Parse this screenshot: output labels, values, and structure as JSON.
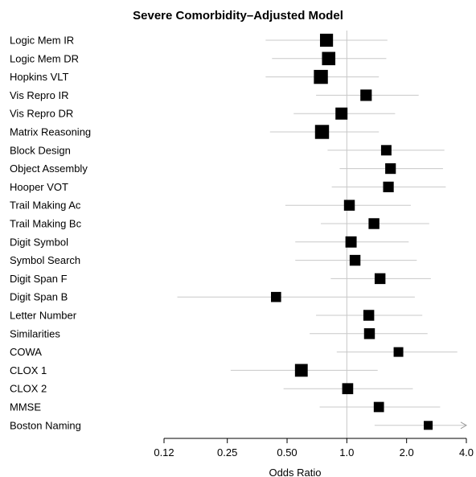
{
  "chart_data": {
    "type": "forest",
    "title": "Severe Comorbidity–Adjusted Model",
    "xlabel": "Odds Ratio",
    "xscale": "log",
    "xlim": [
      0.12,
      4.0
    ],
    "xticks": [
      0.12,
      0.25,
      0.5,
      1.0,
      2.0,
      4.0
    ],
    "xtick_labels": [
      "0.12",
      "0.25",
      "0.50",
      "1.0",
      "2.0",
      "4.0"
    ],
    "reference_line": 1.0,
    "colors": {
      "marker": "#000000",
      "ci_line": "#c8c8c8",
      "reference": "#c8c8c8",
      "axis": "#000000"
    },
    "rows": [
      {
        "label": "Logic Mem IR",
        "or": 0.79,
        "ci_low": 0.39,
        "ci_high": 1.6,
        "weight": 0.85
      },
      {
        "label": "Logic Mem DR",
        "or": 0.81,
        "ci_low": 0.42,
        "ci_high": 1.58,
        "weight": 0.88
      },
      {
        "label": "Hopkins VLT",
        "or": 0.74,
        "ci_low": 0.39,
        "ci_high": 1.45,
        "weight": 0.95
      },
      {
        "label": "Vis Repro IR",
        "or": 1.25,
        "ci_low": 0.7,
        "ci_high": 2.3,
        "weight": 0.68
      },
      {
        "label": "Vis Repro DR",
        "or": 0.94,
        "ci_low": 0.54,
        "ci_high": 1.75,
        "weight": 0.75
      },
      {
        "label": "Matrix Reasoning",
        "or": 0.75,
        "ci_low": 0.41,
        "ci_high": 1.45,
        "weight": 0.95
      },
      {
        "label": "Block Design",
        "or": 1.58,
        "ci_low": 0.8,
        "ci_high": 3.1,
        "weight": 0.58
      },
      {
        "label": "Object Assembly",
        "or": 1.66,
        "ci_low": 0.92,
        "ci_high": 3.05,
        "weight": 0.6
      },
      {
        "label": "Hooper VOT",
        "or": 1.62,
        "ci_low": 0.84,
        "ci_high": 3.15,
        "weight": 0.6
      },
      {
        "label": "Trail Making Ac",
        "or": 1.03,
        "ci_low": 0.49,
        "ci_high": 2.1,
        "weight": 0.62
      },
      {
        "label": "Trail Making Bc",
        "or": 1.37,
        "ci_low": 0.74,
        "ci_high": 2.6,
        "weight": 0.62
      },
      {
        "label": "Digit Symbol",
        "or": 1.05,
        "ci_low": 0.55,
        "ci_high": 2.05,
        "weight": 0.66
      },
      {
        "label": "Symbol Search",
        "or": 1.1,
        "ci_low": 0.55,
        "ci_high": 2.25,
        "weight": 0.62
      },
      {
        "label": "Digit Span F",
        "or": 1.47,
        "ci_low": 0.83,
        "ci_high": 2.65,
        "weight": 0.62
      },
      {
        "label": "Digit Span B",
        "or": 0.44,
        "ci_low": 0.14,
        "ci_high": 2.2,
        "weight": 0.55
      },
      {
        "label": "Letter Number",
        "or": 1.29,
        "ci_low": 0.7,
        "ci_high": 2.4,
        "weight": 0.62
      },
      {
        "label": "Similarities",
        "or": 1.3,
        "ci_low": 0.65,
        "ci_high": 2.55,
        "weight": 0.62
      },
      {
        "label": "COWA",
        "or": 1.82,
        "ci_low": 0.89,
        "ci_high": 3.6,
        "weight": 0.5
      },
      {
        "label": "CLOX 1",
        "or": 0.59,
        "ci_low": 0.26,
        "ci_high": 1.43,
        "weight": 0.82
      },
      {
        "label": "CLOX 2",
        "or": 1.01,
        "ci_low": 0.48,
        "ci_high": 2.15,
        "weight": 0.64
      },
      {
        "label": "MMSE",
        "or": 1.45,
        "ci_low": 0.73,
        "ci_high": 2.95,
        "weight": 0.56
      },
      {
        "label": "Boston Naming",
        "or": 2.57,
        "ci_low": 1.38,
        "ci_high": 4.0,
        "ci_high_truncated": true,
        "weight": 0.42
      }
    ]
  }
}
